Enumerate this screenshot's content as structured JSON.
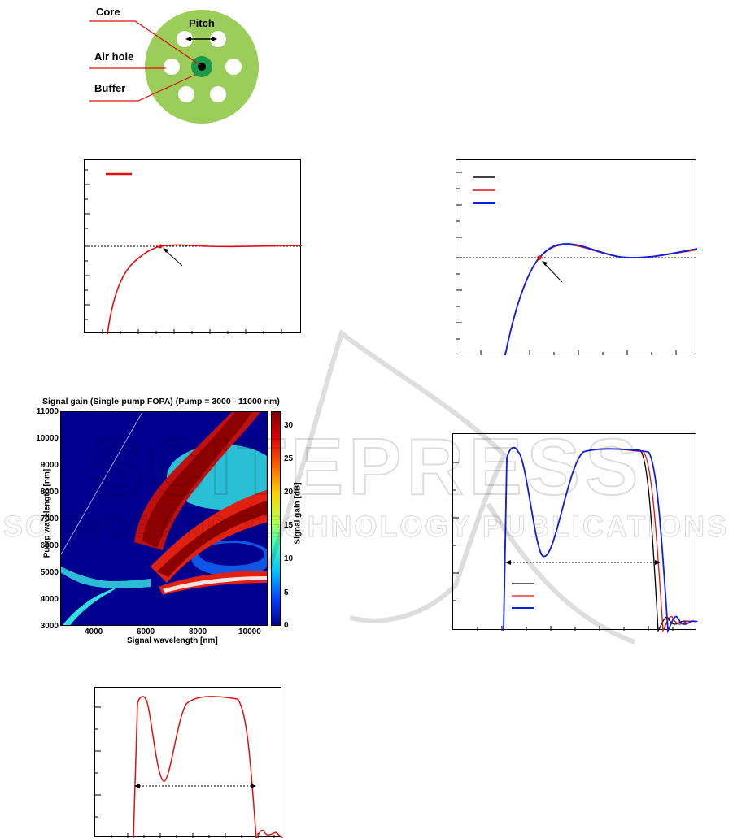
{
  "fiber": {
    "labels": {
      "core": "Core",
      "pitch": "Pitch",
      "air_hole": "Air hole",
      "buffer": "Buffer"
    }
  },
  "colors": {
    "fiber_cladding": "#9ACD5A",
    "air_hole": "#FFFFFF",
    "buffer": "#1A9A4A",
    "core": "#000000",
    "red": "#E01010",
    "blue": "#1020E0",
    "black": "#000000"
  },
  "heatmap": {
    "title": "Signal gain (Single-pump FOPA) (Pump = 3000 - 11000 nm)",
    "xlabel": "Signal wavelength [nm]",
    "ylabel": "Pump wavelength [nm]",
    "colorbar_label": "Signal gain [dB]",
    "x_ticks": [
      "4000",
      "6000",
      "8000",
      "10000"
    ],
    "y_ticks": [
      "11000",
      "10000",
      "9000",
      "8000",
      "7000",
      "6000",
      "5000",
      "4000",
      "3000"
    ],
    "cb_ticks": [
      "30",
      "25",
      "20",
      "15",
      "10",
      "5",
      "0"
    ]
  },
  "chart_data": [
    {
      "type": "line",
      "title": "",
      "series": [
        {
          "values": [
            -100,
            -35,
            -8,
            0,
            0.6,
            0.3,
            0.1,
            0.2,
            0.15
          ]
        }
      ],
      "x": [
        0.1,
        0.2,
        0.3,
        0.37,
        0.5,
        0.6,
        0.75,
        0.9,
        1.0
      ],
      "reference_line": "horizontal dotted",
      "grid": false
    },
    {
      "type": "line",
      "title": "",
      "series": [
        {
          "values": [
            -100,
            -40,
            -8,
            0,
            1.2,
            0.6,
            0,
            0.1,
            0.7
          ]
        },
        {
          "values": [
            -100,
            -40,
            -8,
            0,
            1.2,
            0.6,
            0,
            0.1,
            0.7
          ]
        },
        {
          "values": [
            -100,
            -40,
            -8,
            0,
            1.25,
            0.6,
            0,
            0.1,
            0.75
          ]
        }
      ],
      "x": [
        0.25,
        0.3,
        0.35,
        0.38,
        0.48,
        0.6,
        0.75,
        0.9,
        1.0
      ],
      "reference_line": "horizontal dotted",
      "grid": false
    },
    {
      "type": "heatmap",
      "title": "Signal gain (Single-pump FOPA) (Pump = 3000 - 11000 nm)",
      "xlabel": "Signal wavelength [nm]",
      "ylabel": "Pump wavelength [nm]",
      "xlim": [
        3000,
        11000
      ],
      "ylim": [
        3000,
        11000
      ],
      "zlim": [
        0,
        32
      ],
      "colorbar_label": "Signal gain [dB]"
    },
    {
      "type": "line",
      "title": "",
      "series": [
        {
          "values": [
            0,
            30,
            30,
            15,
            30,
            30,
            30,
            0,
            2,
            1
          ]
        },
        {
          "values": [
            0,
            30,
            30,
            15,
            30,
            30,
            30,
            0,
            3,
            1
          ]
        },
        {
          "values": [
            0,
            30,
            30,
            15,
            30,
            30,
            30,
            0,
            3,
            2
          ]
        }
      ],
      "x": [
        0.25,
        0.28,
        0.32,
        0.45,
        0.62,
        0.8,
        0.9,
        1.0,
        1.05,
        1.1
      ],
      "reference_line": "horizontal dotted arrow (bandwidth)",
      "grid": false
    },
    {
      "type": "line",
      "title": "",
      "series": [
        {
          "values": [
            0,
            30,
            30,
            13,
            30,
            30,
            0,
            2,
            1
          ]
        }
      ],
      "x": [
        0.2,
        0.25,
        0.3,
        0.38,
        0.5,
        0.75,
        0.87,
        0.92,
        0.97
      ],
      "reference_line": "horizontal dotted arrow (bandwidth)",
      "grid": false
    }
  ],
  "watermark": {
    "line1": "SCITEPRESS",
    "line2": "SCIENCE AND TECHNOLOGY PUBLICATIONS"
  }
}
